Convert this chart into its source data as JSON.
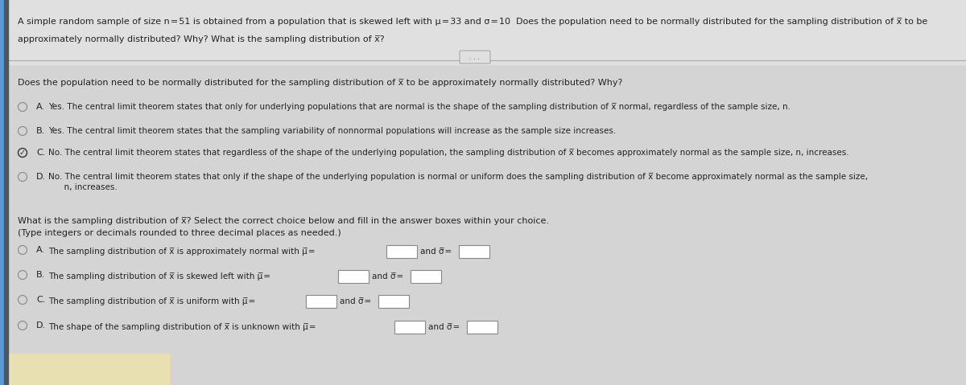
{
  "bg_color": "#c8c8c8",
  "header_bg": "#6baed6",
  "left_bar_color": "#4a7fb5",
  "dark_bar_color": "#555555",
  "separator_color": "#999999",
  "header_text_line1": "A simple random sample of size n = 51 is obtained from a population that is skewed left with μ = 33 and σ = 10  Does the population need to be normally distributed for the sampling distribution of x̅ to be",
  "header_text_line2": "approximately normally distributed? Why? What is the sampling distribution of x̅?",
  "section1_title": "Does the population need to be normally distributed for the sampling distribution of x̅ to be approximately normally distributed? Why?",
  "options_part1": [
    {
      "label": "A.",
      "checked": false,
      "text": "Yes. The central limit theorem states that only for underlying populations that are normal is the shape of the sampling distribution of x̅ normal, regardless of the sample size, n."
    },
    {
      "label": "B.",
      "checked": false,
      "text": "Yes. The central limit theorem states that the sampling variability of nonnormal populations will increase as the sample size increases."
    },
    {
      "label": "C.",
      "checked": true,
      "text": "No. The central limit theorem states that regardless of the shape of the underlying population, the sampling distribution of x̅ becomes approximately normal as the sample size, n, increases."
    },
    {
      "label": "D.",
      "checked": false,
      "text": "No. The central limit theorem states that only if the shape of the underlying population is normal or uniform does the sampling distribution of x̅ become approximately normal as the sample size,\n      n, increases."
    }
  ],
  "section2_line1": "What is the sampling distribution of x̅? Select the correct choice below and fill in the answer boxes within your choice.",
  "section2_line2": "(Type integers or decimals rounded to three decimal places as needed.)",
  "options_part2": [
    {
      "label": "A.",
      "text_before": "The sampling distribution of x̅ is approximately normal with μ̅ =",
      "text_mid": "and σ̅ ="
    },
    {
      "label": "B.",
      "text_before": "The sampling distribution of x̅ is skewed left with μ̅ =",
      "text_mid": "and σ̅ ="
    },
    {
      "label": "C.",
      "text_before": "The sampling distribution of x̅ is uniform with μ̅ =",
      "text_mid": "and σ̅ ="
    },
    {
      "label": "D.",
      "text_before": "The shape of the sampling distribution of x̅ is unknown with μ̅ =",
      "text_mid": "and σ̅ ="
    }
  ],
  "text_color": "#222222",
  "radio_color": "#666666",
  "check_color": "#333333",
  "font_size": 8.0,
  "content_bg": "#d8d8d8"
}
